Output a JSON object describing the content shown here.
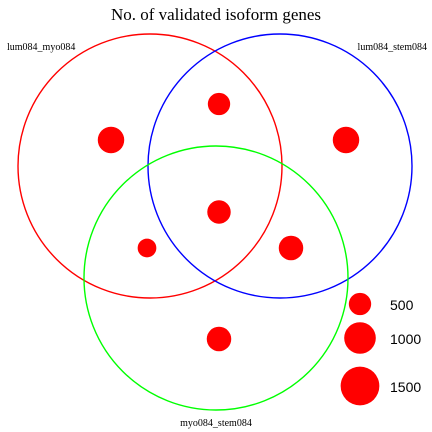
{
  "title": "No. of validated isoform genes",
  "sets": [
    {
      "name": "lum084_myo084",
      "color": "#ff0000"
    },
    {
      "name": "lum084_stem084",
      "color": "#0000ff"
    },
    {
      "name": "myo084_stem084",
      "color": "#00ff00"
    }
  ],
  "regions": [
    {
      "id": "myo-only",
      "sets": [
        "lum084_myo084"
      ],
      "value": 700
    },
    {
      "id": "stem-only",
      "sets": [
        "lum084_stem084"
      ],
      "value": 700
    },
    {
      "id": "green-only",
      "sets": [
        "myo084_stem084"
      ],
      "value": 600
    },
    {
      "id": "red-blue",
      "sets": [
        "lum084_myo084",
        "lum084_stem084"
      ],
      "value": 500
    },
    {
      "id": "red-green",
      "sets": [
        "lum084_myo084",
        "myo084_stem084"
      ],
      "value": 350
    },
    {
      "id": "blue-green",
      "sets": [
        "lum084_stem084",
        "myo084_stem084"
      ],
      "value": 600
    },
    {
      "id": "all-three",
      "sets": [
        "lum084_myo084",
        "lum084_stem084",
        "myo084_stem084"
      ],
      "value": 550
    }
  ],
  "point_color": "#ff0000",
  "size_legend": [
    {
      "label": "500",
      "value": 500
    },
    {
      "label": "1000",
      "value": 1000
    },
    {
      "label": "1500",
      "value": 1500
    }
  ]
}
